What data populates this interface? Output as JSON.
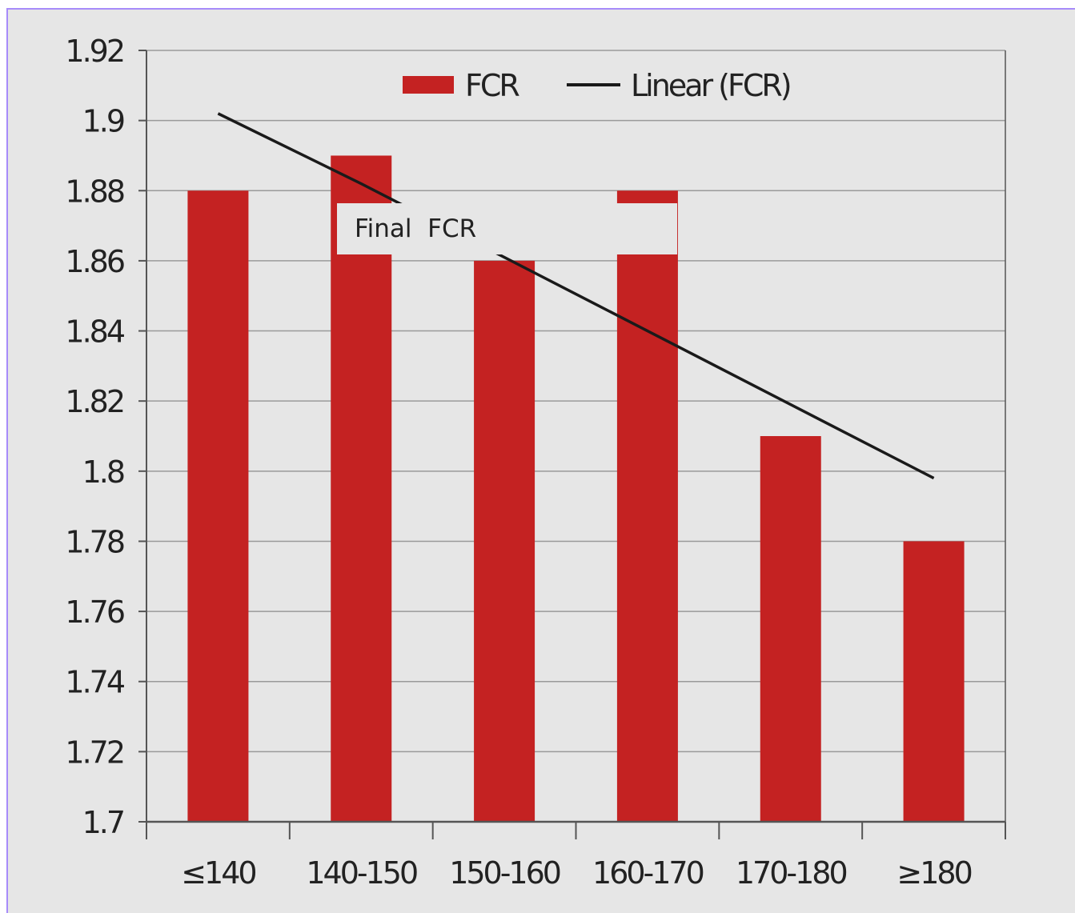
{
  "chart_data": {
    "type": "bar",
    "categories": [
      "≤140",
      "140-150",
      "150-160",
      "160-170",
      "170-180",
      "≥180"
    ],
    "series": [
      {
        "name": "FCR",
        "type": "bar",
        "values": [
          1.88,
          1.89,
          1.86,
          1.88,
          1.81,
          1.78
        ],
        "color": "#c42222"
      },
      {
        "name": "Linear (FCR)",
        "type": "line",
        "values": [
          1.902,
          1.882,
          1.861,
          1.84,
          1.819,
          1.798
        ],
        "color": "#1a1a1a"
      }
    ],
    "ylim": [
      1.7,
      1.92
    ],
    "yticks": [
      "1.7",
      "1.72",
      "1.74",
      "1.76",
      "1.78",
      "1.8",
      "1.82",
      "1.84",
      "1.86",
      "1.88",
      "1.9",
      "1.92"
    ],
    "grid": true,
    "legend_position": "top-center"
  },
  "overlay": {
    "label": "Final  FCR"
  },
  "colors": {
    "background": "#e6e6e6",
    "grid": "#9a9a9a",
    "axis": "#555555",
    "bar": "#c42222",
    "trend": "#1a1a1a"
  }
}
